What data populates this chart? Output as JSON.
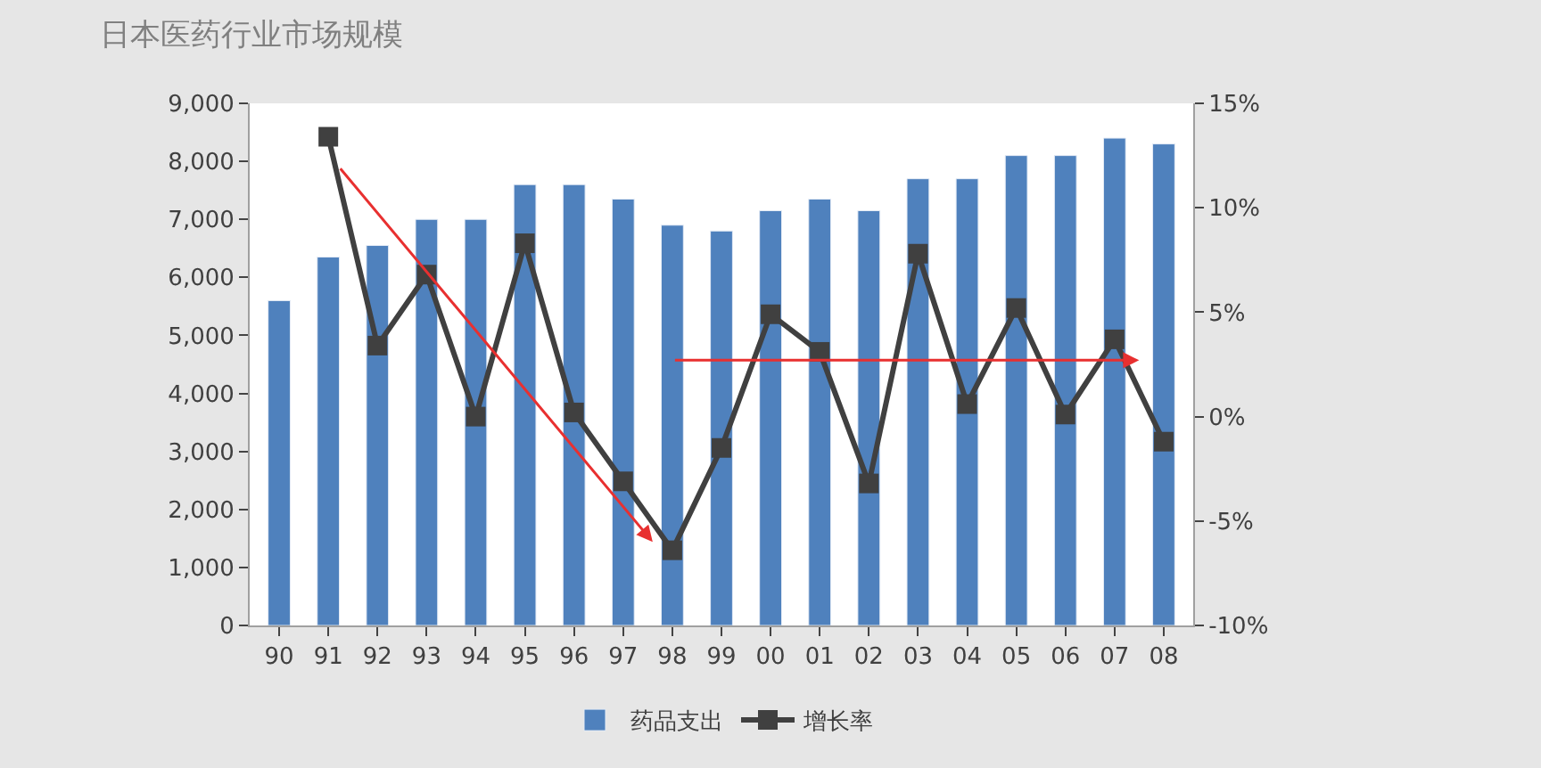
{
  "chart_data": {
    "type": "bar",
    "title": "日本医药行业市场规模",
    "categories": [
      "90",
      "91",
      "92",
      "93",
      "94",
      "95",
      "96",
      "97",
      "98",
      "99",
      "00",
      "01",
      "02",
      "03",
      "04",
      "05",
      "06",
      "07",
      "08"
    ],
    "series": [
      {
        "name": "药品支出",
        "color": "#4f81bd",
        "values": [
          5600,
          6350,
          6550,
          7000,
          7000,
          7600,
          7600,
          7350,
          6900,
          6800,
          7150,
          7350,
          7150,
          7700,
          7700,
          8100,
          8100,
          8400,
          8300
        ]
      },
      {
        "name": "增长率",
        "type": "line",
        "axis": "y2",
        "color": "#404040",
        "marker": "square",
        "values": [
          null,
          13.4,
          3.4,
          6.8,
          0,
          8.3,
          0.2,
          -3.1,
          -6.4,
          -1.5,
          4.9,
          3.1,
          -3.2,
          7.8,
          0.6,
          5.2,
          0.1,
          3.7,
          -1.2
        ]
      }
    ],
    "ylim": [
      0,
      9000
    ],
    "yticks": [
      0,
      {
        "value": 1000,
        "label": "1,000"
      },
      {
        "value": 2000,
        "label": "2,000"
      },
      {
        "value": 3000,
        "label": "3,000"
      },
      {
        "value": 4000,
        "label": "4,000"
      },
      {
        "value": 5000,
        "label": "5,000"
      },
      {
        "value": 6000,
        "label": "6,000"
      },
      {
        "value": 7000,
        "label": "7,000"
      },
      {
        "value": 8000,
        "label": "8,000"
      },
      {
        "value": 9000,
        "label": "9,000"
      }
    ],
    "y2lim": [
      -10,
      15
    ],
    "y2ticks": [
      {
        "value": -10,
        "label": "-10%"
      },
      {
        "value": -5,
        "label": "-5%"
      },
      {
        "value": 0,
        "label": "0%"
      },
      {
        "value": 5,
        "label": "5%"
      },
      {
        "value": 10,
        "label": "10%"
      },
      {
        "value": 15,
        "label": "15%"
      }
    ],
    "legend": "bottom"
  }
}
